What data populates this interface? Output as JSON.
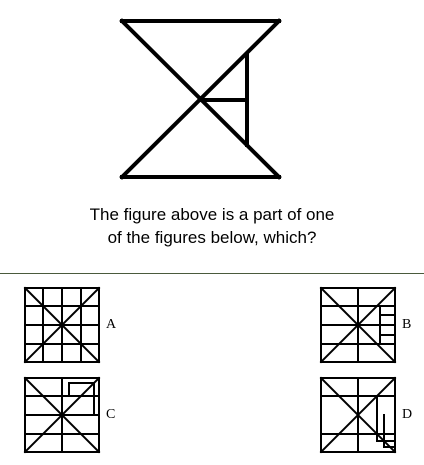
{
  "question": {
    "line1": "The figure above is a part of one",
    "line2": "of the figures below, which?"
  },
  "options": [
    {
      "letter": "A"
    },
    {
      "letter": "B"
    },
    {
      "letter": "C"
    },
    {
      "letter": "D"
    }
  ]
}
